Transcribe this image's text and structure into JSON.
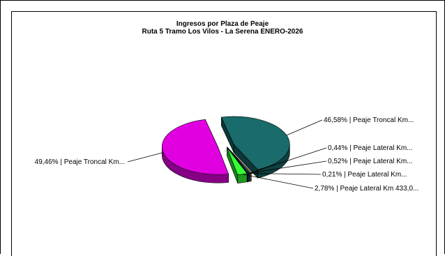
{
  "chart_data": {
    "type": "pie",
    "title": "Ingresos por Plaza de Peaje",
    "subtitle": "Ruta 5 Tramo Los Vilos - La Serena ENERO-2026",
    "slices": [
      {
        "label": "46,58% | Peaje Troncal Km...",
        "value": 46.58,
        "color": "#1a6b6b"
      },
      {
        "label": "0,44% | Peaje Lateral Km...",
        "value": 0.44,
        "color": "#8a8a2a"
      },
      {
        "label": "0,52% | Peaje Lateral Km...",
        "value": 0.52,
        "color": "#1f3f8f"
      },
      {
        "label": "0,21% | Peaje Lateral Km...",
        "value": 0.21,
        "color": "#000000"
      },
      {
        "label": "2,78% | Peaje Lateral Km 433,0...",
        "value": 2.78,
        "color": "#33ff33"
      },
      {
        "label": "49,46% | Peaje Troncal Km...",
        "value": 49.46,
        "color": "#e000e0"
      }
    ],
    "style": "3d-exploded-pie"
  }
}
